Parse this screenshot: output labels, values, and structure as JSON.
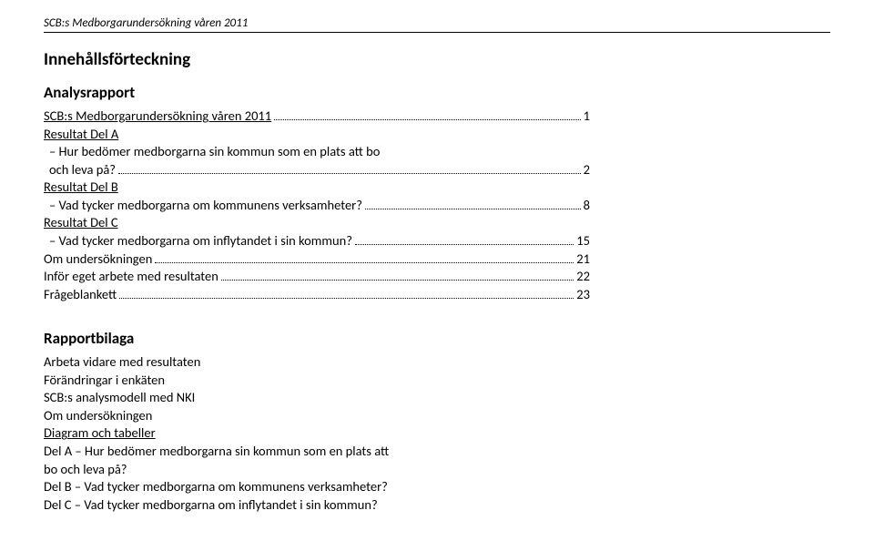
{
  "header": {
    "title": "SCB:s Medborgarundersökning våren 2011"
  },
  "toc": {
    "heading": "Innehållsförteckning",
    "section1": {
      "title": "Analysrapport",
      "items": [
        {
          "text": "SCB:s Medborgarundersökning våren 2011",
          "page": "1",
          "link": true,
          "indent": false
        },
        {
          "text": "Resultat Del A",
          "page": "",
          "link": true,
          "indent": false
        },
        {
          "text": "– Hur bedömer medborgarna sin kommun som en plats att bo",
          "page": "",
          "link": false,
          "indent": true
        },
        {
          "text": "och leva på?",
          "page": "2",
          "link": false,
          "indent": true
        },
        {
          "text": "Resultat Del B",
          "page": "",
          "link": true,
          "indent": false
        },
        {
          "text": "– Vad tycker medborgarna om kommunens verksamheter?",
          "page": "8",
          "link": false,
          "indent": true
        },
        {
          "text": "Resultat Del C",
          "page": "",
          "link": true,
          "indent": false
        },
        {
          "text": "– Vad tycker medborgarna om inflytandet i sin kommun?",
          "page": "15",
          "link": false,
          "indent": true
        },
        {
          "text": "Om undersökningen",
          "page": "21",
          "link": false,
          "indent": false
        },
        {
          "text": "Inför eget arbete med resultaten",
          "page": "22",
          "link": false,
          "indent": false
        },
        {
          "text": "Frågeblankett",
          "page": "23",
          "link": false,
          "indent": false
        }
      ]
    },
    "section2": {
      "title": "Rapportbilaga",
      "lines": [
        {
          "text": "Arbeta vidare med resultaten",
          "link": false
        },
        {
          "text": "Förändringar i enkäten",
          "link": false
        },
        {
          "text": "SCB:s analysmodell med NKI",
          "link": false
        },
        {
          "text": "Om undersökningen",
          "link": false
        },
        {
          "text": "Diagram och tabeller",
          "link": true
        },
        {
          "text": "Del A – Hur bedömer medborgarna sin kommun som en plats att",
          "link": false
        },
        {
          "text": "bo och leva på?",
          "link": false
        },
        {
          "text": "Del B – Vad tycker medborgarna om kommunens verksamheter?",
          "link": false
        },
        {
          "text": "Del C – Vad tycker medborgarna om inflytandet i sin kommun?",
          "link": false
        }
      ]
    }
  }
}
